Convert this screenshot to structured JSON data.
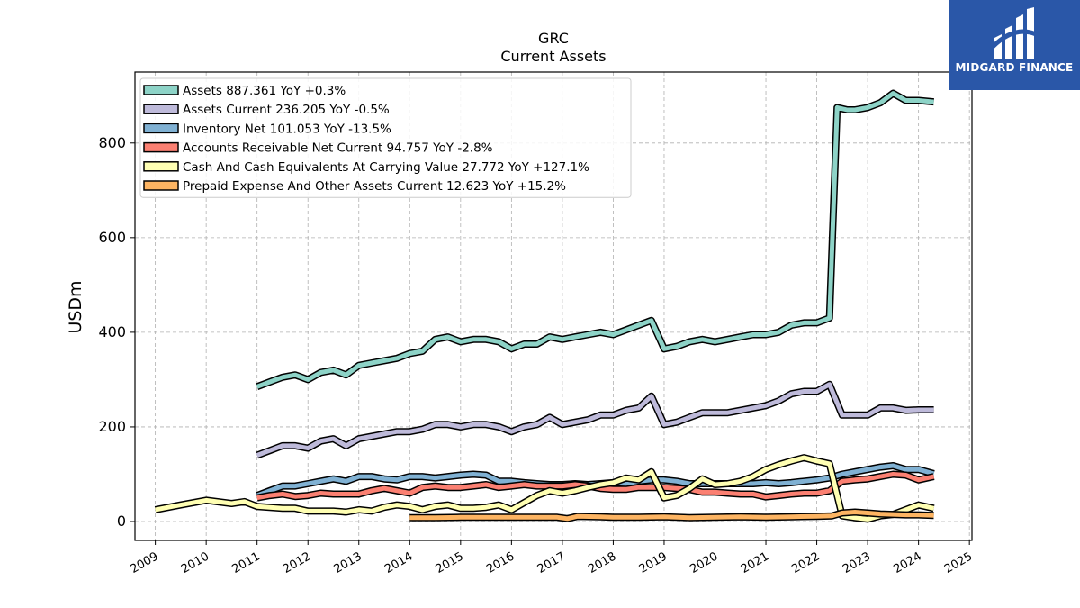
{
  "brand": {
    "name": "MIDGARD FINANCE",
    "color": "#2a57a8"
  },
  "chart_data": {
    "type": "line",
    "title": "GRC",
    "subtitle": "Current  Assets",
    "xlabel": "",
    "ylabel": "USDm",
    "xlim": [
      2008.6,
      2025.05
    ],
    "ylim": [
      -40,
      950
    ],
    "yticks": [
      0,
      200,
      400,
      600,
      800
    ],
    "xticks": [
      2009,
      2010,
      2011,
      2012,
      2013,
      2014,
      2015,
      2016,
      2017,
      2018,
      2019,
      2020,
      2021,
      2022,
      2023,
      2024,
      2025
    ],
    "grid": true,
    "legend_position": "top-left",
    "series": [
      {
        "name": "Assets  887.361 YoY +0.3%",
        "color": "#8dd3c7",
        "points": [
          [
            2011.0,
            285
          ],
          [
            2011.25,
            295
          ],
          [
            2011.5,
            305
          ],
          [
            2011.75,
            310
          ],
          [
            2012.0,
            300
          ],
          [
            2012.25,
            315
          ],
          [
            2012.5,
            320
          ],
          [
            2012.75,
            310
          ],
          [
            2013.0,
            330
          ],
          [
            2013.25,
            335
          ],
          [
            2013.5,
            340
          ],
          [
            2013.75,
            345
          ],
          [
            2014.0,
            355
          ],
          [
            2014.25,
            360
          ],
          [
            2014.5,
            385
          ],
          [
            2014.75,
            390
          ],
          [
            2015.0,
            380
          ],
          [
            2015.25,
            385
          ],
          [
            2015.5,
            385
          ],
          [
            2015.75,
            380
          ],
          [
            2016.0,
            365
          ],
          [
            2016.25,
            375
          ],
          [
            2016.5,
            375
          ],
          [
            2016.75,
            390
          ],
          [
            2017.0,
            385
          ],
          [
            2017.25,
            390
          ],
          [
            2017.5,
            395
          ],
          [
            2017.75,
            400
          ],
          [
            2018.0,
            395
          ],
          [
            2018.25,
            405
          ],
          [
            2018.5,
            415
          ],
          [
            2018.75,
            425
          ],
          [
            2019.0,
            365
          ],
          [
            2019.25,
            370
          ],
          [
            2019.5,
            380
          ],
          [
            2019.75,
            385
          ],
          [
            2020.0,
            380
          ],
          [
            2020.25,
            385
          ],
          [
            2020.5,
            390
          ],
          [
            2020.75,
            395
          ],
          [
            2021.0,
            395
          ],
          [
            2021.25,
            400
          ],
          [
            2021.5,
            415
          ],
          [
            2021.75,
            420
          ],
          [
            2022.0,
            420
          ],
          [
            2022.25,
            430
          ],
          [
            2022.4,
            875
          ],
          [
            2022.6,
            870
          ],
          [
            2022.75,
            870
          ],
          [
            2023.0,
            875
          ],
          [
            2023.25,
            885
          ],
          [
            2023.5,
            905
          ],
          [
            2023.75,
            890
          ],
          [
            2024.0,
            890
          ],
          [
            2024.3,
            887
          ]
        ]
      },
      {
        "name": "Assets Current  236.205 YoY -0.5%",
        "color": "#bebada",
        "points": [
          [
            2011.0,
            140
          ],
          [
            2011.25,
            150
          ],
          [
            2011.5,
            160
          ],
          [
            2011.75,
            160
          ],
          [
            2012.0,
            155
          ],
          [
            2012.25,
            170
          ],
          [
            2012.5,
            175
          ],
          [
            2012.75,
            160
          ],
          [
            2013.0,
            175
          ],
          [
            2013.25,
            180
          ],
          [
            2013.5,
            185
          ],
          [
            2013.75,
            190
          ],
          [
            2014.0,
            190
          ],
          [
            2014.25,
            195
          ],
          [
            2014.5,
            205
          ],
          [
            2014.75,
            205
          ],
          [
            2015.0,
            200
          ],
          [
            2015.25,
            205
          ],
          [
            2015.5,
            205
          ],
          [
            2015.75,
            200
          ],
          [
            2016.0,
            190
          ],
          [
            2016.25,
            200
          ],
          [
            2016.5,
            205
          ],
          [
            2016.75,
            220
          ],
          [
            2017.0,
            205
          ],
          [
            2017.25,
            210
          ],
          [
            2017.5,
            215
          ],
          [
            2017.75,
            225
          ],
          [
            2018.0,
            225
          ],
          [
            2018.25,
            235
          ],
          [
            2018.5,
            240
          ],
          [
            2018.75,
            265
          ],
          [
            2019.0,
            205
          ],
          [
            2019.25,
            210
          ],
          [
            2019.5,
            220
          ],
          [
            2019.75,
            230
          ],
          [
            2020.0,
            230
          ],
          [
            2020.25,
            230
          ],
          [
            2020.5,
            235
          ],
          [
            2020.75,
            240
          ],
          [
            2021.0,
            245
          ],
          [
            2021.25,
            255
          ],
          [
            2021.5,
            270
          ],
          [
            2021.75,
            275
          ],
          [
            2022.0,
            275
          ],
          [
            2022.25,
            290
          ],
          [
            2022.5,
            225
          ],
          [
            2022.75,
            225
          ],
          [
            2023.0,
            225
          ],
          [
            2023.25,
            240
          ],
          [
            2023.5,
            240
          ],
          [
            2023.75,
            235
          ],
          [
            2024.0,
            236
          ],
          [
            2024.3,
            236
          ]
        ]
      },
      {
        "name": "Inventory Net  101.053 YoY -13.5%",
        "color": "#80b1d3",
        "points": [
          [
            2011.0,
            55
          ],
          [
            2011.25,
            65
          ],
          [
            2011.5,
            75
          ],
          [
            2011.75,
            75
          ],
          [
            2012.0,
            80
          ],
          [
            2012.25,
            85
          ],
          [
            2012.5,
            90
          ],
          [
            2012.75,
            85
          ],
          [
            2013.0,
            95
          ],
          [
            2013.25,
            95
          ],
          [
            2013.5,
            90
          ],
          [
            2013.75,
            88
          ],
          [
            2014.0,
            95
          ],
          [
            2014.25,
            95
          ],
          [
            2014.5,
            92
          ],
          [
            2014.75,
            95
          ],
          [
            2015.0,
            98
          ],
          [
            2015.25,
            100
          ],
          [
            2015.5,
            98
          ],
          [
            2015.75,
            85
          ],
          [
            2016.0,
            85
          ],
          [
            2016.25,
            82
          ],
          [
            2016.5,
            80
          ],
          [
            2016.75,
            78
          ],
          [
            2017.0,
            78
          ],
          [
            2017.25,
            80
          ],
          [
            2017.5,
            78
          ],
          [
            2017.75,
            80
          ],
          [
            2018.0,
            82
          ],
          [
            2018.25,
            80
          ],
          [
            2018.5,
            85
          ],
          [
            2018.75,
            88
          ],
          [
            2019.0,
            88
          ],
          [
            2019.25,
            85
          ],
          [
            2019.5,
            80
          ],
          [
            2019.75,
            80
          ],
          [
            2020.0,
            80
          ],
          [
            2020.25,
            80
          ],
          [
            2020.5,
            80
          ],
          [
            2020.75,
            80
          ],
          [
            2021.0,
            82
          ],
          [
            2021.25,
            80
          ],
          [
            2021.5,
            82
          ],
          [
            2021.75,
            85
          ],
          [
            2022.0,
            88
          ],
          [
            2022.25,
            92
          ],
          [
            2022.5,
            100
          ],
          [
            2022.75,
            105
          ],
          [
            2023.0,
            110
          ],
          [
            2023.25,
            115
          ],
          [
            2023.5,
            118
          ],
          [
            2023.75,
            110
          ],
          [
            2024.0,
            110
          ],
          [
            2024.3,
            101
          ]
        ]
      },
      {
        "name": "Accounts Receivable Net Current  94.757 YoY -2.8%",
        "color": "#fb8072",
        "points": [
          [
            2011.0,
            50
          ],
          [
            2011.25,
            55
          ],
          [
            2011.5,
            58
          ],
          [
            2011.75,
            53
          ],
          [
            2012.0,
            55
          ],
          [
            2012.25,
            60
          ],
          [
            2012.5,
            58
          ],
          [
            2012.75,
            58
          ],
          [
            2013.0,
            58
          ],
          [
            2013.25,
            65
          ],
          [
            2013.5,
            70
          ],
          [
            2013.75,
            65
          ],
          [
            2014.0,
            60
          ],
          [
            2014.25,
            72
          ],
          [
            2014.5,
            75
          ],
          [
            2014.75,
            72
          ],
          [
            2015.0,
            72
          ],
          [
            2015.25,
            75
          ],
          [
            2015.5,
            78
          ],
          [
            2015.75,
            72
          ],
          [
            2016.0,
            75
          ],
          [
            2016.25,
            78
          ],
          [
            2016.5,
            75
          ],
          [
            2016.75,
            75
          ],
          [
            2017.0,
            75
          ],
          [
            2017.25,
            78
          ],
          [
            2017.5,
            75
          ],
          [
            2017.75,
            70
          ],
          [
            2018.0,
            68
          ],
          [
            2018.25,
            68
          ],
          [
            2018.5,
            72
          ],
          [
            2018.75,
            72
          ],
          [
            2019.0,
            72
          ],
          [
            2019.25,
            70
          ],
          [
            2019.5,
            68
          ],
          [
            2019.75,
            62
          ],
          [
            2020.0,
            62
          ],
          [
            2020.25,
            60
          ],
          [
            2020.5,
            58
          ],
          [
            2020.75,
            58
          ],
          [
            2021.0,
            52
          ],
          [
            2021.25,
            55
          ],
          [
            2021.5,
            58
          ],
          [
            2021.75,
            60
          ],
          [
            2022.0,
            60
          ],
          [
            2022.25,
            65
          ],
          [
            2022.5,
            85
          ],
          [
            2022.75,
            88
          ],
          [
            2023.0,
            90
          ],
          [
            2023.25,
            95
          ],
          [
            2023.5,
            100
          ],
          [
            2023.75,
            98
          ],
          [
            2024.0,
            88
          ],
          [
            2024.3,
            95
          ]
        ]
      },
      {
        "name": "Cash And Cash Equivalents At Carrying Value  27.772 YoY +127.1%",
        "color": "#ffffb3",
        "points": [
          [
            2009.0,
            25
          ],
          [
            2009.5,
            35
          ],
          [
            2010.0,
            45
          ],
          [
            2010.5,
            38
          ],
          [
            2010.75,
            42
          ],
          [
            2011.0,
            32
          ],
          [
            2011.25,
            30
          ],
          [
            2011.5,
            28
          ],
          [
            2011.75,
            28
          ],
          [
            2012.0,
            22
          ],
          [
            2012.25,
            22
          ],
          [
            2012.5,
            22
          ],
          [
            2012.75,
            20
          ],
          [
            2013.0,
            25
          ],
          [
            2013.25,
            22
          ],
          [
            2013.5,
            30
          ],
          [
            2013.75,
            35
          ],
          [
            2014.0,
            32
          ],
          [
            2014.25,
            25
          ],
          [
            2014.5,
            32
          ],
          [
            2014.75,
            35
          ],
          [
            2015.0,
            28
          ],
          [
            2015.25,
            28
          ],
          [
            2015.5,
            30
          ],
          [
            2015.75,
            35
          ],
          [
            2016.0,
            25
          ],
          [
            2016.25,
            40
          ],
          [
            2016.5,
            55
          ],
          [
            2016.75,
            65
          ],
          [
            2017.0,
            60
          ],
          [
            2017.25,
            65
          ],
          [
            2017.5,
            72
          ],
          [
            2017.75,
            78
          ],
          [
            2018.0,
            82
          ],
          [
            2018.25,
            92
          ],
          [
            2018.5,
            88
          ],
          [
            2018.75,
            105
          ],
          [
            2019.0,
            50
          ],
          [
            2019.25,
            55
          ],
          [
            2019.5,
            70
          ],
          [
            2019.75,
            90
          ],
          [
            2020.0,
            78
          ],
          [
            2020.25,
            80
          ],
          [
            2020.5,
            85
          ],
          [
            2020.75,
            95
          ],
          [
            2021.0,
            110
          ],
          [
            2021.25,
            120
          ],
          [
            2021.5,
            128
          ],
          [
            2021.75,
            135
          ],
          [
            2022.0,
            128
          ],
          [
            2022.25,
            122
          ],
          [
            2022.5,
            12
          ],
          [
            2022.75,
            8
          ],
          [
            2023.0,
            5
          ],
          [
            2023.25,
            12
          ],
          [
            2023.5,
            15
          ],
          [
            2023.75,
            25
          ],
          [
            2024.0,
            35
          ],
          [
            2024.3,
            28
          ]
        ]
      },
      {
        "name": "Prepaid Expense And Other Assets Current  12.623 YoY +15.2%",
        "color": "#fdb462",
        "points": [
          [
            2014.0,
            8
          ],
          [
            2014.5,
            8
          ],
          [
            2015.0,
            9
          ],
          [
            2015.5,
            9
          ],
          [
            2016.0,
            9
          ],
          [
            2016.5,
            9
          ],
          [
            2016.9,
            9
          ],
          [
            2017.1,
            6
          ],
          [
            2017.3,
            11
          ],
          [
            2017.75,
            10
          ],
          [
            2018.0,
            9
          ],
          [
            2018.5,
            9
          ],
          [
            2019.0,
            10
          ],
          [
            2019.5,
            8
          ],
          [
            2020.0,
            9
          ],
          [
            2020.5,
            10
          ],
          [
            2021.0,
            9
          ],
          [
            2021.5,
            10
          ],
          [
            2022.0,
            11
          ],
          [
            2022.3,
            12
          ],
          [
            2022.5,
            18
          ],
          [
            2022.75,
            20
          ],
          [
            2023.0,
            18
          ],
          [
            2023.25,
            16
          ],
          [
            2023.5,
            15
          ],
          [
            2023.75,
            14
          ],
          [
            2024.0,
            14
          ],
          [
            2024.3,
            13
          ]
        ]
      }
    ]
  }
}
